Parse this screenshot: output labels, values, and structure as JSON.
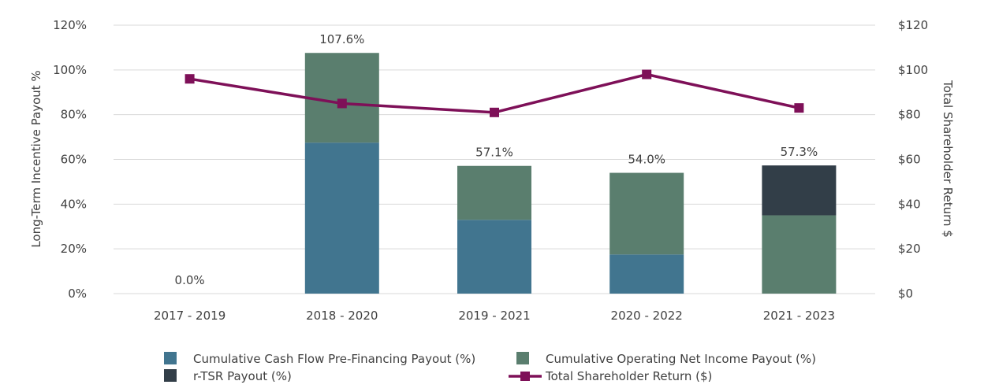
{
  "chart_data": {
    "type": "bar",
    "subtype": "stacked-bar-with-line",
    "categories": [
      "2017 - 2019",
      "2018 - 2020",
      "2019 - 2021",
      "2020 - 2022",
      "2021 - 2023"
    ],
    "series": [
      {
        "name": "Cumulative Cash Flow Pre-Financing Payout (%)",
        "color": "#41758f",
        "axis": "left",
        "kind": "bar",
        "values": [
          0,
          67.5,
          33.0,
          17.5,
          0
        ]
      },
      {
        "name": "Cumulative Operating Net Income Payout (%)",
        "color": "#5a7e6e",
        "axis": "left",
        "kind": "bar",
        "values": [
          0,
          40.1,
          24.1,
          36.5,
          35.0
        ]
      },
      {
        "name": "r-TSR Payout (%)",
        "color": "#323e48",
        "axis": "left",
        "kind": "bar",
        "values": [
          0,
          0,
          0,
          0,
          22.3
        ]
      },
      {
        "name": "Total Shareholder Return ($)",
        "color": "#7e1058",
        "axis": "right",
        "kind": "line",
        "values": [
          96,
          85,
          81,
          98,
          83
        ]
      }
    ],
    "total_labels": [
      "0.0%",
      "107.6%",
      "57.1%",
      "54.0%",
      "57.3%"
    ],
    "total_values": [
      0,
      107.6,
      57.1,
      54.0,
      57.3
    ],
    "ylabel": "Long-Term Incentive Payout %",
    "ylabel_right": "Total Shareholder Return $",
    "ylim": [
      0,
      120
    ],
    "ylim_right": [
      0,
      120
    ],
    "yticks": [
      "0%",
      "20%",
      "40%",
      "60%",
      "80%",
      "100%",
      "120%"
    ],
    "yticks_right": [
      "$0",
      "$20",
      "$40",
      "$60",
      "$80",
      "$100",
      "$120"
    ],
    "grid": true,
    "legend_position": "bottom"
  }
}
